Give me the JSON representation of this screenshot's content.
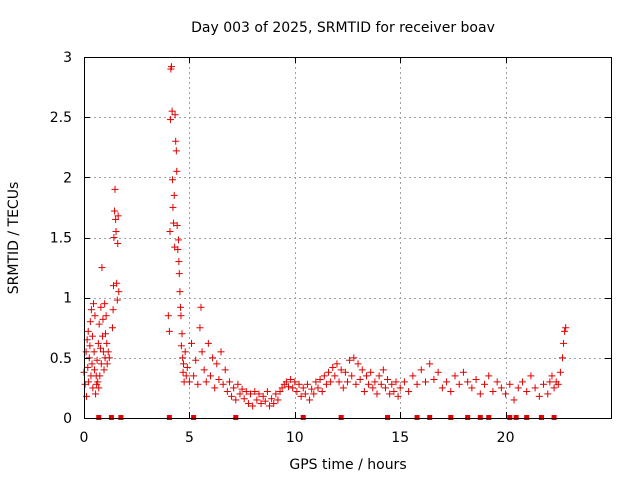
{
  "chart_data": {
    "type": "scatter",
    "title": "Day 003 of 2025, SRMTID for receiver boav",
    "xlabel": "GPS time / hours",
    "ylabel": "SRMTID / TECUs",
    "xlim": [
      0,
      25
    ],
    "ylim": [
      0,
      3
    ],
    "xticks": [
      0,
      5,
      10,
      15,
      20
    ],
    "yticks": [
      0,
      0.5,
      1,
      1.5,
      2,
      2.5,
      3
    ],
    "xtick_labels": [
      "0",
      "5",
      "10",
      "15",
      "20"
    ],
    "ytick_labels": [
      "0",
      "0.5",
      "1",
      "1.5",
      "2",
      "2.5",
      "3"
    ],
    "grid": true,
    "marker": "plus",
    "color": "#e00000",
    "series": [
      {
        "name": "SRMTID",
        "points": [
          [
            0.0,
            0.38
          ],
          [
            0.05,
            0.28
          ],
          [
            0.1,
            0.55
          ],
          [
            0.12,
            0.18
          ],
          [
            0.15,
            0.65
          ],
          [
            0.18,
            0.42
          ],
          [
            0.2,
            0.72
          ],
          [
            0.22,
            0.3
          ],
          [
            0.25,
            0.5
          ],
          [
            0.28,
            0.6
          ],
          [
            0.3,
            0.8
          ],
          [
            0.33,
            0.35
          ],
          [
            0.35,
            0.9
          ],
          [
            0.38,
            0.45
          ],
          [
            0.4,
            0.68
          ],
          [
            0.42,
            0.25
          ],
          [
            0.45,
            0.95
          ],
          [
            0.48,
            0.55
          ],
          [
            0.5,
            0.4
          ],
          [
            0.52,
            0.85
          ],
          [
            0.55,
            0.2
          ],
          [
            0.58,
            0.35
          ],
          [
            0.6,
            0.28
          ],
          [
            0.62,
            0.48
          ],
          [
            0.65,
            0.3
          ],
          [
            0.68,
            0.62
          ],
          [
            0.7,
            0.25
          ],
          [
            0.72,
            0.78
          ],
          [
            0.75,
            0.35
          ],
          [
            0.78,
            0.58
          ],
          [
            0.8,
            0.92
          ],
          [
            0.82,
            0.45
          ],
          [
            0.85,
            1.25
          ],
          [
            0.88,
            0.68
          ],
          [
            0.9,
            0.82
          ],
          [
            0.92,
            0.55
          ],
          [
            0.95,
            0.4
          ],
          [
            0.98,
            0.95
          ],
          [
            1.0,
            0.5
          ],
          [
            1.02,
            0.7
          ],
          [
            1.05,
            0.85
          ],
          [
            1.08,
            0.62
          ],
          [
            1.1,
            0.45
          ],
          [
            1.15,
            0.55
          ],
          [
            1.2,
            0.5
          ],
          [
            1.35,
            0.75
          ],
          [
            1.38,
            0.9
          ],
          [
            1.4,
            1.1
          ],
          [
            1.42,
            1.5
          ],
          [
            1.45,
            1.72
          ],
          [
            1.47,
            1.9
          ],
          [
            1.5,
            1.65
          ],
          [
            1.52,
            1.55
          ],
          [
            1.55,
            1.12
          ],
          [
            1.58,
            0.98
          ],
          [
            1.6,
            1.45
          ],
          [
            1.62,
            1.68
          ],
          [
            1.65,
            1.05
          ],
          [
            4.0,
            0.85
          ],
          [
            4.05,
            0.72
          ],
          [
            4.08,
            1.55
          ],
          [
            4.1,
            2.48
          ],
          [
            4.12,
            2.9
          ],
          [
            4.15,
            2.92
          ],
          [
            4.18,
            2.55
          ],
          [
            4.2,
            1.98
          ],
          [
            4.22,
            1.75
          ],
          [
            4.25,
            1.62
          ],
          [
            4.28,
            1.85
          ],
          [
            4.3,
            1.42
          ],
          [
            4.32,
            2.52
          ],
          [
            4.35,
            2.3
          ],
          [
            4.38,
            2.22
          ],
          [
            4.4,
            2.05
          ],
          [
            4.42,
            1.6
          ],
          [
            4.45,
            1.4
          ],
          [
            4.48,
            1.48
          ],
          [
            4.5,
            1.3
          ],
          [
            4.52,
            1.2
          ],
          [
            4.55,
            1.05
          ],
          [
            4.58,
            0.92
          ],
          [
            4.6,
            0.85
          ],
          [
            4.62,
            0.6
          ],
          [
            4.65,
            0.7
          ],
          [
            4.68,
            0.5
          ],
          [
            4.7,
            0.38
          ],
          [
            4.72,
            0.45
          ],
          [
            4.75,
            0.3
          ],
          [
            4.8,
            0.55
          ],
          [
            4.85,
            0.35
          ],
          [
            4.9,
            0.42
          ],
          [
            5.0,
            0.3
          ],
          [
            5.1,
            0.62
          ],
          [
            5.2,
            0.35
          ],
          [
            5.3,
            0.48
          ],
          [
            5.4,
            0.28
          ],
          [
            5.5,
            0.75
          ],
          [
            5.55,
            0.92
          ],
          [
            5.6,
            0.55
          ],
          [
            5.7,
            0.4
          ],
          [
            5.8,
            0.3
          ],
          [
            5.9,
            0.62
          ],
          [
            6.0,
            0.35
          ],
          [
            6.1,
            0.5
          ],
          [
            6.2,
            0.25
          ],
          [
            6.3,
            0.45
          ],
          [
            6.4,
            0.32
          ],
          [
            6.5,
            0.55
          ],
          [
            6.6,
            0.28
          ],
          [
            6.7,
            0.4
          ],
          [
            6.8,
            0.22
          ],
          [
            6.9,
            0.3
          ],
          [
            7.0,
            0.18
          ],
          [
            7.1,
            0.25
          ],
          [
            7.2,
            0.15
          ],
          [
            7.3,
            0.28
          ],
          [
            7.4,
            0.2
          ],
          [
            7.5,
            0.24
          ],
          [
            7.6,
            0.16
          ],
          [
            7.7,
            0.22
          ],
          [
            7.8,
            0.12
          ],
          [
            7.9,
            0.2
          ],
          [
            8.0,
            0.1
          ],
          [
            8.1,
            0.22
          ],
          [
            8.2,
            0.15
          ],
          [
            8.3,
            0.2
          ],
          [
            8.4,
            0.12
          ],
          [
            8.5,
            0.18
          ],
          [
            8.6,
            0.14
          ],
          [
            8.7,
            0.22
          ],
          [
            8.8,
            0.1
          ],
          [
            8.9,
            0.16
          ],
          [
            9.0,
            0.12
          ],
          [
            9.1,
            0.2
          ],
          [
            9.2,
            0.15
          ],
          [
            9.3,
            0.22
          ],
          [
            9.4,
            0.25
          ],
          [
            9.5,
            0.28
          ],
          [
            9.6,
            0.3
          ],
          [
            9.7,
            0.26
          ],
          [
            9.8,
            0.32
          ],
          [
            9.9,
            0.25
          ],
          [
            10.0,
            0.3
          ],
          [
            10.1,
            0.22
          ],
          [
            10.2,
            0.28
          ],
          [
            10.3,
            0.18
          ],
          [
            10.4,
            0.25
          ],
          [
            10.5,
            0.2
          ],
          [
            10.6,
            0.28
          ],
          [
            10.7,
            0.15
          ],
          [
            10.8,
            0.24
          ],
          [
            10.9,
            0.2
          ],
          [
            11.0,
            0.3
          ],
          [
            11.1,
            0.25
          ],
          [
            11.2,
            0.32
          ],
          [
            11.3,
            0.22
          ],
          [
            11.4,
            0.35
          ],
          [
            11.5,
            0.28
          ],
          [
            11.6,
            0.38
          ],
          [
            11.7,
            0.3
          ],
          [
            11.8,
            0.42
          ],
          [
            11.9,
            0.35
          ],
          [
            12.0,
            0.45
          ],
          [
            12.1,
            0.3
          ],
          [
            12.2,
            0.4
          ],
          [
            12.3,
            0.25
          ],
          [
            12.4,
            0.38
          ],
          [
            12.5,
            0.3
          ],
          [
            12.6,
            0.48
          ],
          [
            12.7,
            0.35
          ],
          [
            12.8,
            0.5
          ],
          [
            12.9,
            0.28
          ],
          [
            13.0,
            0.45
          ],
          [
            13.1,
            0.32
          ],
          [
            13.2,
            0.4
          ],
          [
            13.3,
            0.22
          ],
          [
            13.4,
            0.35
          ],
          [
            13.5,
            0.28
          ],
          [
            13.6,
            0.38
          ],
          [
            13.7,
            0.25
          ],
          [
            13.8,
            0.3
          ],
          [
            13.9,
            0.2
          ],
          [
            14.0,
            0.35
          ],
          [
            14.1,
            0.28
          ],
          [
            14.2,
            0.4
          ],
          [
            14.3,
            0.25
          ],
          [
            14.4,
            0.32
          ],
          [
            14.5,
            0.2
          ],
          [
            14.6,
            0.28
          ],
          [
            14.7,
            0.22
          ],
          [
            14.8,
            0.3
          ],
          [
            14.9,
            0.18
          ],
          [
            15.0,
            0.25
          ],
          [
            15.2,
            0.3
          ],
          [
            15.4,
            0.22
          ],
          [
            15.6,
            0.35
          ],
          [
            15.8,
            0.28
          ],
          [
            16.0,
            0.4
          ],
          [
            16.2,
            0.3
          ],
          [
            16.4,
            0.45
          ],
          [
            16.6,
            0.32
          ],
          [
            16.8,
            0.38
          ],
          [
            17.0,
            0.25
          ],
          [
            17.2,
            0.3
          ],
          [
            17.4,
            0.22
          ],
          [
            17.6,
            0.35
          ],
          [
            17.8,
            0.28
          ],
          [
            18.0,
            0.38
          ],
          [
            18.2,
            0.3
          ],
          [
            18.4,
            0.25
          ],
          [
            18.6,
            0.32
          ],
          [
            18.8,
            0.2
          ],
          [
            19.0,
            0.28
          ],
          [
            19.2,
            0.35
          ],
          [
            19.4,
            0.22
          ],
          [
            19.6,
            0.3
          ],
          [
            19.8,
            0.25
          ],
          [
            20.0,
            0.2
          ],
          [
            20.2,
            0.28
          ],
          [
            20.4,
            0.15
          ],
          [
            20.6,
            0.25
          ],
          [
            20.8,
            0.3
          ],
          [
            21.0,
            0.22
          ],
          [
            21.2,
            0.35
          ],
          [
            21.4,
            0.25
          ],
          [
            21.6,
            0.18
          ],
          [
            21.8,
            0.28
          ],
          [
            22.0,
            0.2
          ],
          [
            22.1,
            0.3
          ],
          [
            22.2,
            0.35
          ],
          [
            22.3,
            0.25
          ],
          [
            22.4,
            0.3
          ],
          [
            22.5,
            0.28
          ],
          [
            22.6,
            0.38
          ],
          [
            22.7,
            0.5
          ],
          [
            22.75,
            0.62
          ],
          [
            22.8,
            0.72
          ],
          [
            22.85,
            0.75
          ]
        ]
      }
    ],
    "data_gaps_hours": [
      0.7,
      1.3,
      1.75,
      4.05,
      5.2,
      7.2,
      10.4,
      12.2,
      14.4,
      15.8,
      16.4,
      17.4,
      18.2,
      18.8,
      19.2,
      20.2,
      20.5,
      21.0,
      21.7,
      22.3
    ]
  }
}
